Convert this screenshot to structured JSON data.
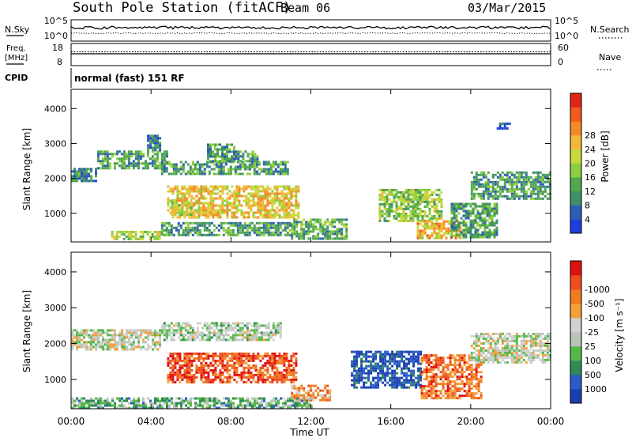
{
  "header": {
    "station": "South Pole Station (fitACF)",
    "beam": "Beam 06",
    "date": "03/Mar/2015"
  },
  "top_panels": {
    "nsky_label": "N.Sky",
    "nsearch_label": "N.Search",
    "noise_ticks": [
      "10^5",
      "10^0"
    ],
    "freq_label_1": "Freq.",
    "freq_label_2": "[MHz]",
    "freq_ticks": [
      "18",
      "8"
    ],
    "nave_label": "Nave",
    "nave_ticks": [
      "60",
      "0"
    ],
    "cpid_label": "CPID",
    "cpid_text": "normal (fast) 151 RF"
  },
  "x_axis": {
    "label": "Time UT",
    "ticks": [
      "00:00",
      "04:00",
      "08:00",
      "12:00",
      "16:00",
      "20:00",
      "00:00"
    ]
  },
  "chart_data": [
    {
      "type": "heatmap",
      "panel": "power",
      "ylabel": "Slant Range [km]",
      "xlabel": "",
      "xlim": [
        0,
        24
      ],
      "ylim": [
        180,
        4550
      ],
      "yticks": [
        1000,
        2000,
        3000,
        4000
      ],
      "colorbar": {
        "label": "Power [dB]",
        "ticks": [
          "4",
          "8",
          "12",
          "16",
          "20",
          "24",
          "28"
        ],
        "colors": [
          "#1f3fdc",
          "#2e5db4",
          "#3f8f6a",
          "#52a84c",
          "#8ccf3e",
          "#c8d93a",
          "#f2b83a",
          "#f68a2a",
          "#f35a1e",
          "#e3241a"
        ]
      },
      "regions": [
        {
          "t0": 0.0,
          "t1": 1.3,
          "r0": 1900,
          "r1": 2300,
          "level": 0.25
        },
        {
          "t0": 1.3,
          "t1": 4.8,
          "r0": 2300,
          "r1": 2800,
          "level": 0.3
        },
        {
          "t0": 3.8,
          "t1": 4.5,
          "r0": 2800,
          "r1": 3250,
          "level": 0.22
        },
        {
          "t0": 4.5,
          "t1": 10.8,
          "r0": 2100,
          "r1": 2500,
          "level": 0.3
        },
        {
          "t0": 6.8,
          "t1": 8.2,
          "r0": 2500,
          "r1": 3000,
          "level": 0.3
        },
        {
          "t0": 8.2,
          "t1": 9.3,
          "r0": 2500,
          "r1": 2800,
          "level": 0.28
        },
        {
          "t0": 4.8,
          "t1": 11.4,
          "r0": 900,
          "r1": 1800,
          "level": 0.62
        },
        {
          "t0": 5.0,
          "t1": 6.0,
          "r0": 950,
          "r1": 1400,
          "level": 0.55
        },
        {
          "t0": 2.0,
          "t1": 4.5,
          "r0": 250,
          "r1": 500,
          "level": 0.5
        },
        {
          "t0": 4.5,
          "t1": 11.0,
          "r0": 400,
          "r1": 750,
          "level": 0.3
        },
        {
          "t0": 11.0,
          "t1": 13.8,
          "r0": 250,
          "r1": 850,
          "level": 0.35
        },
        {
          "t0": 15.4,
          "t1": 18.6,
          "r0": 750,
          "r1": 1700,
          "level": 0.45
        },
        {
          "t0": 17.3,
          "t1": 19.5,
          "r0": 280,
          "r1": 800,
          "level": 0.65
        },
        {
          "t0": 19.0,
          "t1": 21.3,
          "r0": 300,
          "r1": 1300,
          "level": 0.3
        },
        {
          "t0": 20.0,
          "t1": 24.0,
          "r0": 1400,
          "r1": 2200,
          "level": 0.3
        },
        {
          "t0": 21.3,
          "t1": 22.0,
          "r0": 3400,
          "r1": 3600,
          "level": 0.15
        }
      ]
    },
    {
      "type": "heatmap",
      "panel": "velocity",
      "ylabel": "Slant Range [km]",
      "xlabel": "Time UT",
      "xlim": [
        0,
        24
      ],
      "ylim": [
        180,
        4550
      ],
      "yticks": [
        1000,
        2000,
        3000,
        4000
      ],
      "colorbar": {
        "label": "Velocity [m s⁻¹]",
        "ticks": [
          "1000",
          "500",
          "100",
          "25",
          "-25",
          "-100",
          "-500",
          "-1000"
        ],
        "colors": [
          "#1a3fb0",
          "#2d5cc8",
          "#2e8a57",
          "#55b949",
          "#b8c6b8",
          "#d0d0d0",
          "#f3a03a",
          "#f07a20",
          "#ef4d20",
          "#e01010"
        ]
      },
      "regions": [
        {
          "t0": 0.0,
          "t1": 4.5,
          "r0": 1850,
          "r1": 2400,
          "level": 0.5
        },
        {
          "t0": 4.5,
          "t1": 10.5,
          "r0": 2100,
          "r1": 2600,
          "level": 0.45
        },
        {
          "t0": 4.8,
          "t1": 11.3,
          "r0": 900,
          "r1": 1750,
          "level": 0.85
        },
        {
          "t0": 11.0,
          "t1": 13.0,
          "r0": 400,
          "r1": 850,
          "level": 0.7
        },
        {
          "t0": 0.0,
          "t1": 12.0,
          "r0": 200,
          "r1": 500,
          "level": 0.35
        },
        {
          "t0": 14.0,
          "t1": 17.5,
          "r0": 800,
          "r1": 1800,
          "level": 0.08
        },
        {
          "t0": 17.5,
          "t1": 20.5,
          "r0": 500,
          "r1": 1700,
          "level": 0.78
        },
        {
          "t0": 20.0,
          "t1": 24.0,
          "r0": 1500,
          "r1": 2300,
          "level": 0.48
        }
      ]
    }
  ]
}
